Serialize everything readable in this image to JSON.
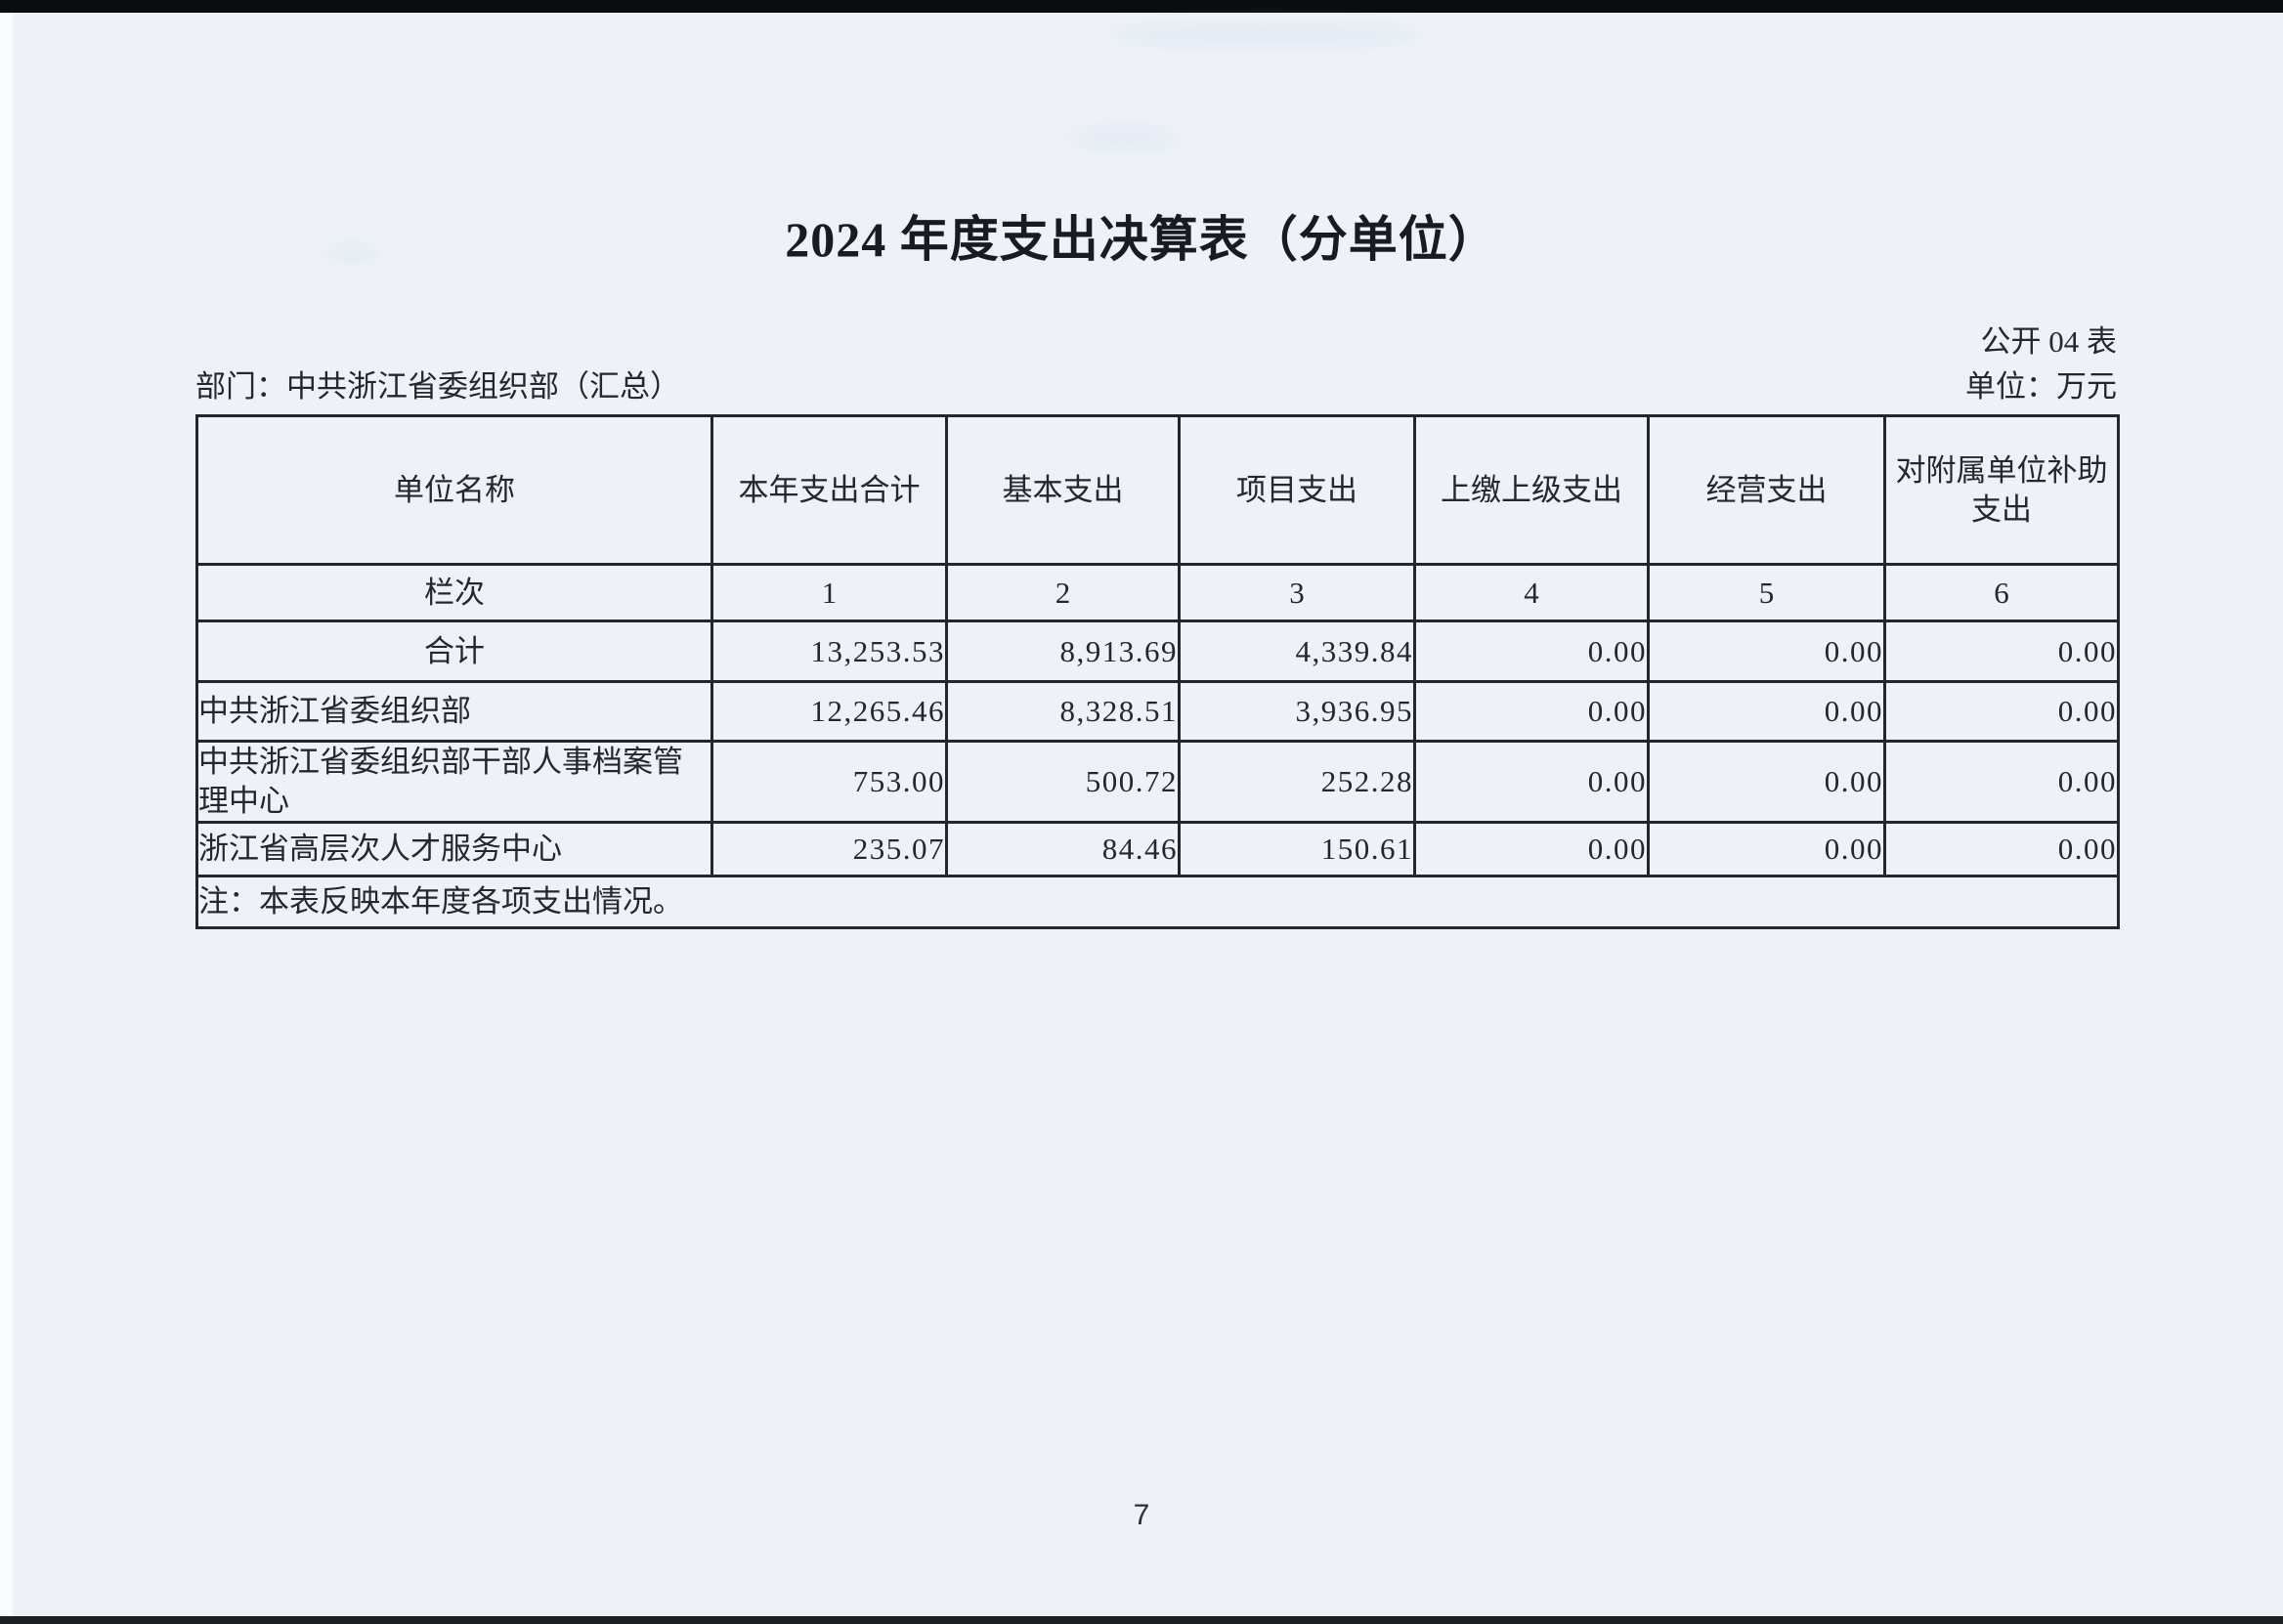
{
  "page": {
    "title": "2024 年度支出决算表（分单位）",
    "table_code": "公开 04 表",
    "department": "部门：中共浙江省委组织部（汇总）",
    "unit": "单位：万元",
    "note": "注：本表反映本年度各项支出情况。",
    "page_number": "7"
  },
  "table": {
    "headers": [
      "单位名称",
      "本年支出合计",
      "基本支出",
      "项目支出",
      "上缴上级支出",
      "经营支出",
      "对附属单位补助支出"
    ],
    "lanci_label": "栏次",
    "lanci": [
      "1",
      "2",
      "3",
      "4",
      "5",
      "6"
    ],
    "rows": [
      {
        "name": "合计",
        "values": [
          "13,253.53",
          "8,913.69",
          "4,339.84",
          "0.00",
          "0.00",
          "0.00"
        ]
      },
      {
        "name": "中共浙江省委组织部",
        "values": [
          "12,265.46",
          "8,328.51",
          "3,936.95",
          "0.00",
          "0.00",
          "0.00"
        ]
      },
      {
        "name": "中共浙江省委组织部干部人事档案管理中心",
        "values": [
          "753.00",
          "500.72",
          "252.28",
          "0.00",
          "0.00",
          "0.00"
        ]
      },
      {
        "name": "浙江省高层次人才服务中心",
        "values": [
          "235.07",
          "84.46",
          "150.61",
          "0.00",
          "0.00",
          "0.00"
        ]
      }
    ]
  }
}
